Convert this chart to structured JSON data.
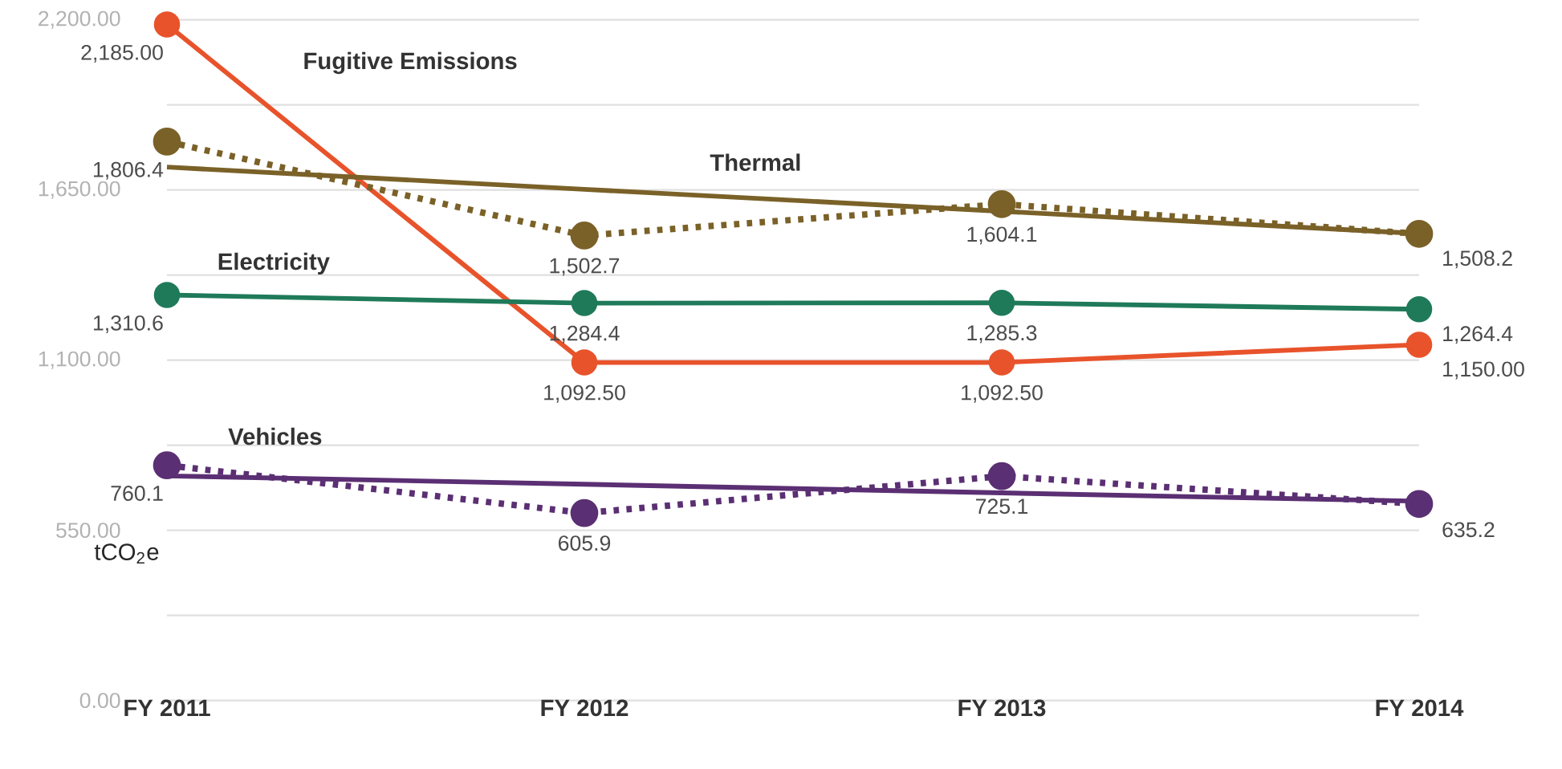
{
  "chart_data": {
    "type": "line",
    "ylabel": "tCO$_{2}$e",
    "categories": [
      "FY 2011",
      "FY 2012",
      "FY 2013",
      "FY 2014"
    ],
    "ylim": [
      0,
      2200
    ],
    "yticks": [
      {
        "value": 0,
        "label": "0.00"
      },
      {
        "value": 275,
        "label": null
      },
      {
        "value": 550,
        "label": "550.00"
      },
      {
        "value": 825,
        "label": null
      },
      {
        "value": 1100,
        "label": "1,100.00"
      },
      {
        "value": 1375,
        "label": null
      },
      {
        "value": 1650,
        "label": "1,650.00"
      },
      {
        "value": 1925,
        "label": null
      },
      {
        "value": 2200,
        "label": "2,200.00"
      }
    ],
    "grid": "y",
    "marker": "circle",
    "line_style": "solid",
    "series": [
      {
        "name": "Fugitive Emissions",
        "color": "#e8532b",
        "values": [
          2185.0,
          1092.5,
          1092.5,
          1150.0
        ],
        "value_labels": [
          "2,185.00",
          "1,092.50",
          "1,092.50",
          "1,150.00"
        ]
      },
      {
        "type": "line",
        "color": "#7a6128",
        "marker": "none",
        "values": [
          1724,
          1652,
          1581,
          1509
        ]
      },
      {
        "name": "Thermal",
        "color": "#7a6128",
        "line_style": "dotted",
        "values": [
          1806.4,
          1502.7,
          1604.1,
          1508.2
        ],
        "value_labels": [
          "1,806.4",
          "1,502.7",
          "1,604.1",
          "1,508.2"
        ]
      },
      {
        "name": "Electricity",
        "color": "#1f7a5a",
        "values": [
          1310.6,
          1284.4,
          1285.3,
          1264.4
        ],
        "value_labels": [
          "1,310.6",
          "1,284.4",
          "1,285.3",
          "1,264.4"
        ]
      },
      {
        "type": "line",
        "color": "#5b2f73",
        "marker": "none",
        "values": [
          726,
          699,
          671,
          644
        ]
      },
      {
        "name": "Vehicles",
        "color": "#5b2f73",
        "line_style": "dotted",
        "values": [
          760.1,
          605.9,
          725.1,
          635.2
        ],
        "value_labels": [
          "760.1",
          "605.9",
          "725.1",
          "635.2"
        ]
      }
    ]
  }
}
